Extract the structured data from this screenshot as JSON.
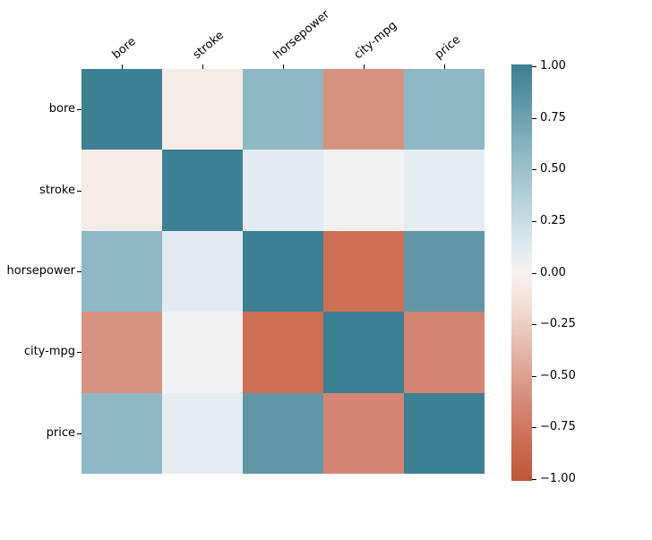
{
  "figure": {
    "background": "#ffffff",
    "description": "Correlation heatmap of automobile variables with diverging teal-to-terracotta colormap and vertical colorbar"
  },
  "chart_data": {
    "type": "heatmap",
    "title": "",
    "xlabel": "",
    "ylabel": "",
    "variables": [
      "bore",
      "stroke",
      "horsepower",
      "city-mpg",
      "price"
    ],
    "matrix": [
      [
        1.0,
        -0.06,
        0.57,
        -0.58,
        0.54
      ],
      [
        -0.06,
        1.0,
        0.1,
        -0.04,
        0.08
      ],
      [
        0.57,
        0.1,
        1.0,
        -0.82,
        0.76
      ],
      [
        -0.58,
        -0.04,
        -0.82,
        1.0,
        -0.69
      ],
      [
        0.54,
        0.08,
        0.76,
        -0.69,
        1.0
      ]
    ],
    "cell_colors": [
      [
        "#3d7f93",
        "#f8ece7",
        "#8fb8c5",
        "#d79181",
        "#8fb8c5"
      ],
      [
        "#f8ece7",
        "#3d7f93",
        "#e3ebf1",
        "#f0f1f0",
        "#e6edf1"
      ],
      [
        "#8fb8c5",
        "#e3ebf1",
        "#3d7f93",
        "#cc6f55",
        "#6296a7"
      ],
      [
        "#d79181",
        "#f0f1f0",
        "#cc6f55",
        "#3d7f93",
        "#d28572"
      ],
      [
        "#8fb8c5",
        "#e6edf1",
        "#6296a7",
        "#d28572",
        "#3d7f93"
      ]
    ],
    "grid": false,
    "legend_position": "right-colorbar",
    "colorbar": {
      "vmin": -1.0,
      "vmax": 1.0,
      "tick_labels": [
        "1.00",
        "0.75",
        "0.50",
        "0.25",
        "0.00",
        "−0.25",
        "−0.50",
        "−0.75",
        "−1.00"
      ],
      "gradient_stops": [
        {
          "pos": 0.0,
          "color": "#3a7e90"
        },
        {
          "pos": 0.215,
          "color": "#8fb8c5"
        },
        {
          "pos": 0.44,
          "color": "#e0eaef"
        },
        {
          "pos": 0.5,
          "color": "#f5f1ee"
        },
        {
          "pos": 0.56,
          "color": "#f5e4dc"
        },
        {
          "pos": 0.79,
          "color": "#d79181"
        },
        {
          "pos": 0.9,
          "color": "#cc6f55"
        },
        {
          "pos": 1.0,
          "color": "#bf5538"
        }
      ]
    },
    "colors": {
      "positive_max": "#3d7f93",
      "negative_max": "#bf5538",
      "tick_color": "#000000",
      "label_color": "#000000"
    }
  }
}
